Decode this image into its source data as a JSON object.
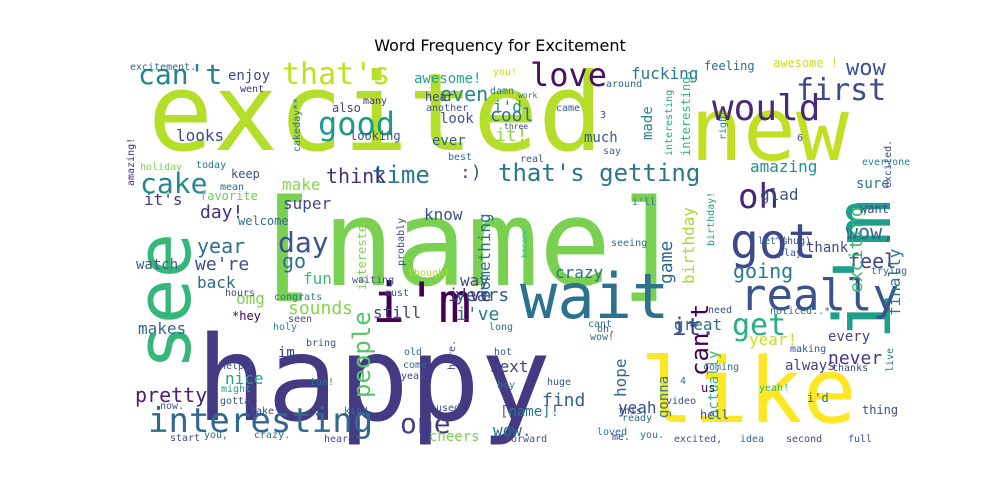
{
  "chart_data": {
    "type": "wordcloud",
    "title": "Word Frequency for Excitement",
    "background": "#ffffff",
    "colormap": "viridis",
    "words": [
      {
        "text": "excited",
        "color": "#b5de2b"
      },
      {
        "text": "[name]",
        "color": "#7ad151"
      },
      {
        "text": "happy",
        "color": "#443983"
      },
      {
        "text": "new",
        "color": "#c2df23"
      },
      {
        "text": "see",
        "color": "#35b779"
      },
      {
        "text": "like",
        "color": "#fde725"
      },
      {
        "text": "wait",
        "color": "#2c728e"
      },
      {
        "text": "i'm",
        "color": "#440154"
      },
      {
        "text": "i'm",
        "color": "#1f9e89"
      },
      {
        "text": "got",
        "color": "#3e4989"
      },
      {
        "text": "really",
        "color": "#3b528b"
      },
      {
        "text": "interesting",
        "color": "#31688e"
      },
      {
        "text": "would",
        "color": "#482878"
      },
      {
        "text": "love",
        "color": "#471063"
      },
      {
        "text": "that's",
        "color": "#c2df23"
      },
      {
        "text": "can't",
        "color": "#26828e"
      },
      {
        "text": "good",
        "color": "#1f9a8a"
      },
      {
        "text": "first",
        "color": "#3e4a89"
      },
      {
        "text": "cake",
        "color": "#23888e"
      },
      {
        "text": "that's getting",
        "color": "#2a778e"
      },
      {
        "text": "oh",
        "color": "#482475"
      },
      {
        "text": "get",
        "color": "#29af7f"
      },
      {
        "text": "day",
        "color": "#3b528b"
      },
      {
        "text": "time",
        "color": "#2a788e"
      },
      {
        "text": "think",
        "color": "#46337e"
      },
      {
        "text": "one",
        "color": "#433e85"
      },
      {
        "text": "people",
        "color": "#54c568"
      },
      {
        "text": "year",
        "color": "#2d708e"
      },
      {
        "text": "wow",
        "color": "#3b528b"
      },
      {
        "text": "wow,",
        "color": "#31688e"
      },
      {
        "text": "go",
        "color": "#2c728e"
      },
      {
        "text": "feel",
        "color": "#414487"
      },
      {
        "text": "going",
        "color": "#2a788e"
      },
      {
        "text": "can't",
        "color": "#440154"
      },
      {
        "text": "it.",
        "color": "#404387"
      },
      {
        "text": "pretty",
        "color": "#482173"
      },
      {
        "text": "even",
        "color": "#25848e"
      },
      {
        "text": "cool",
        "color": "#2d708e"
      },
      {
        "text": "fucking",
        "color": "#2a788e"
      },
      {
        "text": "i'd",
        "color": "#228c8d"
      },
      {
        "text": "i've",
        "color": "#2a768e"
      },
      {
        "text": "it!",
        "color": "#90d743"
      },
      {
        "text": "amazing",
        "color": "#21918c"
      },
      {
        "text": "glad",
        "color": "#3a548c"
      },
      {
        "text": "day!",
        "color": "#46307e"
      },
      {
        "text": "we're",
        "color": "#3c4f8a"
      },
      {
        "text": "back",
        "color": "#31688e"
      },
      {
        "text": "omg",
        "color": "#7ad151"
      },
      {
        "text": "sounds",
        "color": "#84d44b"
      },
      {
        "text": "years",
        "color": "#375a8c"
      },
      {
        "text": "i've",
        "color": "#482878"
      },
      {
        "text": "crazy",
        "color": "#2e6e8e"
      },
      {
        "text": "game",
        "color": "#30698e"
      },
      {
        "text": "birthday",
        "color": "#a5db36"
      },
      {
        "text": "exciting",
        "color": "#38b977"
      },
      {
        "text": "finally",
        "color": "#2a788e"
      },
      {
        "text": "make",
        "color": "#8bd646"
      },
      {
        "text": "super",
        "color": "#3e4a89"
      },
      {
        "text": "know",
        "color": "#3b528b"
      },
      {
        "text": "fun",
        "color": "#3dbc74"
      },
      {
        "text": "way",
        "color": "#3e4989"
      },
      {
        "text": "still",
        "color": "#404688"
      },
      {
        "text": "makes",
        "color": "#31688e"
      },
      {
        "text": "never",
        "color": "#443983"
      },
      {
        "text": "great",
        "color": "#2c718e"
      },
      {
        "text": "year!",
        "color": "#c8e020"
      },
      {
        "text": "find",
        "color": "#34618d"
      },
      {
        "text": "next",
        "color": "#414487"
      },
      {
        "text": "hope",
        "color": "#31688e"
      },
      {
        "text": "yeah",
        "color": "#3b528b"
      },
      {
        "text": "gonna",
        "color": "#2a788e"
      },
      {
        "text": "actually",
        "color": "#32b67a"
      },
      {
        "text": "wow.",
        "color": "#2e6f8e"
      },
      {
        "text": "[name]!",
        "color": "#2a788e"
      },
      {
        "text": "looks",
        "color": "#3e4a89"
      },
      {
        "text": "enjoy",
        "color": "#3e4989"
      },
      {
        "text": "it's",
        "color": "#443a83"
      },
      {
        "text": "favorite",
        "color": "#6ccd5a"
      },
      {
        "text": "keep",
        "color": "#3c4f8a"
      },
      {
        "text": "watch",
        "color": "#375a8c"
      },
      {
        "text": "im",
        "color": "#404387"
      },
      {
        "text": "nice",
        "color": "#20a386"
      },
      {
        "text": "sure",
        "color": "#2a788e"
      },
      {
        "text": "want",
        "color": "#3e4989"
      },
      {
        "text": "thank",
        "color": "#3e4a89"
      },
      {
        "text": "always",
        "color": "#433d84"
      },
      {
        "text": "every",
        "color": "#404387"
      },
      {
        "text": "awesome!",
        "color": "#22a884"
      },
      {
        "text": "awesome !",
        "color": "#c8e020"
      },
      {
        "text": "looking",
        "color": "#3c4f8a"
      },
      {
        "text": "look",
        "color": "#3b528b"
      },
      {
        "text": "ever",
        "color": "#33628d"
      },
      {
        "text": "much",
        "color": "#38588c"
      },
      {
        "text": "made",
        "color": "#26828e"
      },
      {
        "text": "feeling",
        "color": "#2e6e8e"
      },
      {
        "text": "hear",
        "color": "#3e4a89"
      },
      {
        "text": "also",
        "color": "#414487"
      },
      {
        "text": "went",
        "color": "#46307e"
      },
      {
        "text": "hours",
        "color": "#3c4f8a"
      },
      {
        "text": "welcome",
        "color": "#2d708e"
      },
      {
        "text": "mean",
        "color": "#2e6e8e"
      },
      {
        "text": "today",
        "color": "#2a788e"
      },
      {
        "text": "holiday",
        "color": "#7ad151"
      },
      {
        "text": "excitement.",
        "color": "#31688e"
      },
      {
        "text": "amazing!",
        "color": "#472c7a"
      },
      {
        "text": "many",
        "color": "#46307e"
      },
      {
        "text": "another",
        "color": "#3b528b"
      },
      {
        "text": "damn",
        "color": "#2c728e"
      },
      {
        "text": "work",
        "color": "#31688e"
      },
      {
        "text": "three",
        "color": "#3e4989"
      },
      {
        "text": "came",
        "color": "#3b528b"
      },
      {
        "text": "around",
        "color": "#31688e"
      },
      {
        "text": "best",
        "color": "#2e6e8e"
      },
      {
        "text": "real",
        "color": "#3b528b"
      },
      {
        "text": "say",
        "color": "#2c728e"
      },
      {
        "text": "right",
        "color": "#25848e"
      },
      {
        "text": "cakeday**",
        "color": "#30698e"
      },
      {
        "text": "interesting.",
        "color": "#33b67a"
      },
      {
        "text": "interesting",
        "color": "#22a884"
      },
      {
        "text": "excited.",
        "color": "#3e4989"
      },
      {
        "text": "everyone",
        "color": "#26828e"
      },
      {
        "text": "let's",
        "color": "#2e6e8e"
      },
      {
        "text": "^(hug)",
        "color": "#3e4989"
      },
      {
        "text": "play",
        "color": "#3b528b"
      },
      {
        "text": "trying",
        "color": "#31688e"
      },
      {
        "text": "i'll",
        "color": "#2a788e"
      },
      {
        "text": "birthday!",
        "color": "#1fa188"
      },
      {
        "text": "seeing",
        "color": "#2c728e"
      },
      {
        "text": "probably",
        "color": "#3e4a89"
      },
      {
        "text": "interested",
        "color": "#84d44b"
      },
      {
        "text": "waiting",
        "color": "#3b528b"
      },
      {
        "text": "thought",
        "color": "#b5de2b"
      },
      {
        "text": "become",
        "color": "#3dbc74"
      },
      {
        "text": "congrats",
        "color": "#2a788e"
      },
      {
        "text": "*hey",
        "color": "#440154"
      },
      {
        "text": "holy",
        "color": "#25848e"
      },
      {
        "text": "seen",
        "color": "#3e4989"
      },
      {
        "text": "must",
        "color": "#3b528b"
      },
      {
        "text": "long",
        "color": "#2c728e"
      },
      {
        "text": "need",
        "color": "#3b528b"
      },
      {
        "text": "noticed..*",
        "color": "#31688e"
      },
      {
        "text": "cant",
        "color": "#2a788e"
      },
      {
        "text": "oh,",
        "color": "#3c4f8a"
      },
      {
        "text": "wow!",
        "color": "#2e6e8e"
      },
      {
        "text": "making",
        "color": "#3b528b"
      },
      {
        "text": "thanks",
        "color": "#3e4989"
      },
      {
        "text": "live",
        "color": "#2c728e"
      },
      {
        "text": "bring",
        "color": "#3b528b"
      },
      {
        "text": "old",
        "color": "#2e6e8e"
      },
      {
        "text": "come",
        "color": "#31688e"
      },
      {
        "text": "year.",
        "color": "#3e4989"
      },
      {
        "text": "hot",
        "color": "#3b528b"
      },
      {
        "text": "boy",
        "color": "#2a788e"
      },
      {
        "text": "huge",
        "color": "#3b528b"
      },
      {
        "text": "video",
        "color": "#3e4989"
      },
      {
        "text": "coming",
        "color": "#2c728e"
      },
      {
        "text": "yeah!",
        "color": "#35b779"
      },
      {
        "text": "us",
        "color": "#440154"
      },
      {
        "text": "hell",
        "color": "#3b528b"
      },
      {
        "text": "i'd",
        "color": "#2e6e8e"
      },
      {
        "text": "thing",
        "color": "#3c4f8a"
      },
      {
        "text": "help",
        "color": "#3e4989"
      },
      {
        "text": "2",
        "color": "#3b528b"
      },
      {
        "text": "might",
        "color": "#1fa188"
      },
      {
        "text": "too!",
        "color": "#2c728e"
      },
      {
        "text": "gotta",
        "color": "#3b528b"
      },
      {
        "text": "take",
        "color": "#3e4989"
      },
      {
        "text": "kind",
        "color": "#2e6e8e"
      },
      {
        "text": "used",
        "color": "#3b528b"
      },
      {
        "text": "here.",
        "color": "#3e4989"
      },
      {
        "text": "now.",
        "color": "#3b528b"
      },
      {
        "text": "start",
        "color": "#3e4989"
      },
      {
        "text": "you,",
        "color": "#31688e"
      },
      {
        "text": "crazy.",
        "color": "#2c728e"
      },
      {
        "text": "heard",
        "color": "#3e4989"
      },
      {
        "text": "cheers",
        "color": "#7ad151"
      },
      {
        "text": "forward",
        "color": "#3b528b"
      },
      {
        "text": "loved",
        "color": "#2e6e8e"
      },
      {
        "text": "me.",
        "color": "#3e4989"
      },
      {
        "text": "you.",
        "color": "#2c728e"
      },
      {
        "text": "excited,",
        "color": "#3b528b"
      },
      {
        "text": "idea",
        "color": "#31688e"
      },
      {
        "text": "second",
        "color": "#3e4989"
      },
      {
        "text": "full",
        "color": "#3b528b"
      },
      {
        "text": "ready",
        "color": "#2e6e8e"
      },
      {
        "text": "this.",
        "color": "#3e4989"
      },
      {
        "text": "3",
        "color": "#3b528b"
      },
      {
        "text": "4",
        "color": "#2c728e"
      },
      {
        "text": "6",
        "color": "#3e4989"
      },
      {
        "text": "you!",
        "color": "#c8e020"
      },
      {
        "text": ":)",
        "color": "#3b528b"
      },
      {
        "text": "something",
        "color": "#2c728e"
      }
    ]
  }
}
